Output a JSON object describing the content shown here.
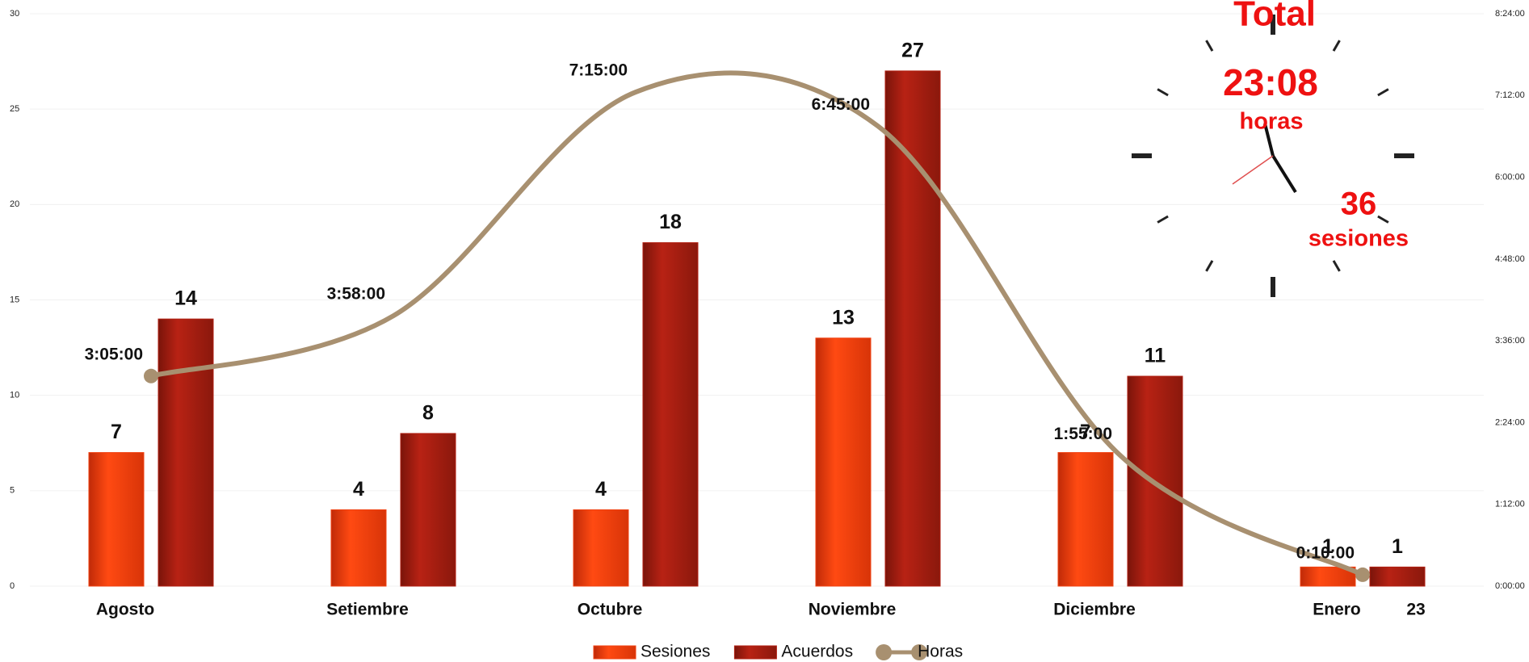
{
  "chart_data": {
    "type": "bar-line",
    "categories": [
      "Agosto",
      "Setiembre",
      "Octubre",
      "Noviembre",
      "Diciembre",
      "Enero"
    ],
    "series": [
      {
        "name": "Sesiones",
        "color": "#f04010",
        "values": [
          7,
          4,
          4,
          13,
          7,
          1
        ]
      },
      {
        "name": "Acuerdos",
        "color": "#b01e10",
        "values": [
          14,
          8,
          18,
          27,
          11,
          1
        ]
      },
      {
        "name": "Horas",
        "color": "#a89070",
        "axis": "y2",
        "type": "line",
        "smooth": true,
        "values": [
          3.0833,
          3.9667,
          7.25,
          6.75,
          1.9167,
          0.1667
        ],
        "value_labels": [
          "3:05:00",
          "3:58:00",
          "7:15:00",
          "6:45:00",
          "1:55:00",
          "0:10:00"
        ]
      }
    ],
    "ylim": [
      0,
      30
    ],
    "yticks": [
      0,
      5,
      10,
      15,
      20,
      25,
      30
    ],
    "y2lim": [
      0,
      8.4
    ],
    "y2ticks": [
      {
        "value": 0,
        "label": "0:00:00"
      },
      {
        "value": 1.2,
        "label": "1:12:00"
      },
      {
        "value": 2.4,
        "label": "2:24:00"
      },
      {
        "value": 3.6,
        "label": "3:36:00"
      },
      {
        "value": 4.8,
        "label": "4:48:00"
      },
      {
        "value": 6,
        "label": "6:00:00"
      },
      {
        "value": 7.2,
        "label": "7:12:00"
      },
      {
        "value": 8.4,
        "label": "8:24:00"
      }
    ],
    "grid": true,
    "legend": "bottom",
    "annotations": {
      "total": "Total",
      "hours": "23:08",
      "hours_unit": "horas",
      "sessions": "36",
      "sessions_unit": "sesiones",
      "year": "23"
    }
  }
}
